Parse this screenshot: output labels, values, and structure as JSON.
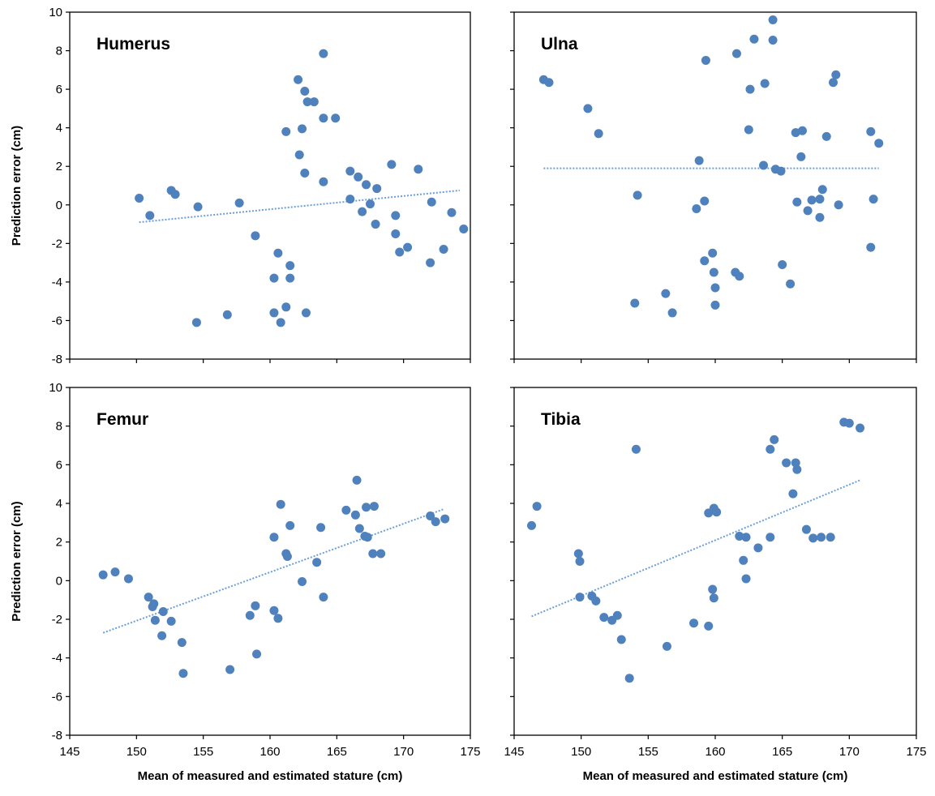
{
  "chart_data": [
    {
      "type": "scatter",
      "title": "Humerus",
      "xlabel": "",
      "ylabel": "Prediction error (cm)",
      "xlim": [
        145,
        175
      ],
      "ylim": [
        -8,
        10
      ],
      "x_ticks": [
        "145",
        "150",
        "155",
        "160",
        "165",
        "170",
        "175"
      ],
      "y_ticks": [
        "-8",
        "-6",
        "-4",
        "-2",
        "0",
        "2",
        "4",
        "6",
        "8",
        "10"
      ],
      "show_x_tick_labels": false,
      "show_y_tick_labels": true,
      "marker_color": "#4f81bd",
      "trendline_color": "#6a9fd8",
      "trendline": {
        "x": [
          150.2,
          174.2
        ],
        "y": [
          -0.9,
          0.75
        ]
      },
      "points": [
        [
          150.2,
          0.35
        ],
        [
          151.0,
          -0.55
        ],
        [
          152.6,
          0.75
        ],
        [
          152.9,
          0.55
        ],
        [
          154.6,
          -0.1
        ],
        [
          154.5,
          -6.1
        ],
        [
          156.8,
          -5.7
        ],
        [
          157.7,
          0.1
        ],
        [
          158.9,
          -1.6
        ],
        [
          160.3,
          -3.8
        ],
        [
          160.6,
          -2.5
        ],
        [
          160.3,
          -5.6
        ],
        [
          160.8,
          -6.1
        ],
        [
          161.2,
          -5.3
        ],
        [
          161.5,
          -3.15
        ],
        [
          161.5,
          -3.8
        ],
        [
          161.2,
          3.8
        ],
        [
          162.1,
          6.5
        ],
        [
          162.6,
          5.9
        ],
        [
          162.8,
          5.35
        ],
        [
          163.3,
          5.35
        ],
        [
          162.4,
          3.95
        ],
        [
          162.2,
          2.6
        ],
        [
          162.6,
          1.65
        ],
        [
          162.7,
          -5.6
        ],
        [
          164.0,
          7.85
        ],
        [
          164.0,
          4.5
        ],
        [
          164.9,
          4.5
        ],
        [
          164.0,
          1.2
        ],
        [
          166.0,
          1.75
        ],
        [
          166.0,
          0.3
        ],
        [
          166.6,
          1.45
        ],
        [
          167.2,
          1.05
        ],
        [
          166.9,
          -0.35
        ],
        [
          167.5,
          0.05
        ],
        [
          168.0,
          0.85
        ],
        [
          167.9,
          -1.0
        ],
        [
          169.1,
          2.1
        ],
        [
          171.1,
          1.85
        ],
        [
          169.4,
          -0.55
        ],
        [
          169.4,
          -1.5
        ],
        [
          169.7,
          -2.45
        ],
        [
          170.3,
          -2.2
        ],
        [
          172.1,
          0.15
        ],
        [
          172.0,
          -3.0
        ],
        [
          173.0,
          -2.3
        ],
        [
          173.6,
          -0.4
        ],
        [
          174.5,
          -1.25
        ]
      ]
    },
    {
      "type": "scatter",
      "title": "Ulna",
      "xlabel": "",
      "ylabel": "",
      "xlim": [
        145,
        175
      ],
      "ylim": [
        -8,
        10
      ],
      "x_ticks": [
        "145",
        "150",
        "155",
        "160",
        "165",
        "170",
        "175"
      ],
      "y_ticks": [
        "-8",
        "-6",
        "-4",
        "-2",
        "0",
        "2",
        "4",
        "6",
        "8",
        "10"
      ],
      "show_x_tick_labels": false,
      "show_y_tick_labels": false,
      "marker_color": "#4f81bd",
      "trendline_color": "#6a9fd8",
      "trendline": {
        "x": [
          147.2,
          172.2
        ],
        "y": [
          1.9,
          1.9
        ]
      },
      "points": [
        [
          147.2,
          6.5
        ],
        [
          147.6,
          6.35
        ],
        [
          150.5,
          5.0
        ],
        [
          151.3,
          3.7
        ],
        [
          154.2,
          0.5
        ],
        [
          154.0,
          -5.1
        ],
        [
          156.3,
          -4.6
        ],
        [
          156.8,
          -5.6
        ],
        [
          158.8,
          2.3
        ],
        [
          159.3,
          7.5
        ],
        [
          159.2,
          0.2
        ],
        [
          158.6,
          -0.2
        ],
        [
          159.2,
          -2.9
        ],
        [
          159.8,
          -2.5
        ],
        [
          159.9,
          -3.5
        ],
        [
          160.0,
          -4.3
        ],
        [
          160.0,
          -5.2
        ],
        [
          161.5,
          -3.5
        ],
        [
          161.8,
          -3.7
        ],
        [
          161.6,
          7.85
        ],
        [
          162.6,
          6.0
        ],
        [
          162.5,
          3.9
        ],
        [
          162.9,
          8.6
        ],
        [
          163.7,
          6.3
        ],
        [
          163.6,
          2.05
        ],
        [
          164.3,
          9.6
        ],
        [
          164.3,
          8.55
        ],
        [
          164.5,
          1.85
        ],
        [
          164.9,
          1.75
        ],
        [
          165.0,
          -3.1
        ],
        [
          165.6,
          -4.1
        ],
        [
          166.0,
          3.75
        ],
        [
          166.1,
          0.15
        ],
        [
          166.4,
          2.5
        ],
        [
          166.5,
          3.85
        ],
        [
          166.9,
          -0.3
        ],
        [
          167.2,
          0.25
        ],
        [
          167.8,
          0.3
        ],
        [
          167.8,
          -0.65
        ],
        [
          168.0,
          0.8
        ],
        [
          168.3,
          3.55
        ],
        [
          168.8,
          6.35
        ],
        [
          169.0,
          6.75
        ],
        [
          169.2,
          0.0
        ],
        [
          171.6,
          3.8
        ],
        [
          171.8,
          0.3
        ],
        [
          171.6,
          -2.2
        ],
        [
          172.2,
          3.2
        ]
      ]
    },
    {
      "type": "scatter",
      "title": "Femur",
      "xlabel": "Mean of measured and estimated stature (cm)",
      "ylabel": "Prediction error (cm)",
      "xlim": [
        145,
        175
      ],
      "ylim": [
        -8,
        10
      ],
      "x_ticks": [
        "145",
        "150",
        "155",
        "160",
        "165",
        "170",
        "175"
      ],
      "y_ticks": [
        "-8",
        "-6",
        "-4",
        "-2",
        "0",
        "2",
        "4",
        "6",
        "8",
        "10"
      ],
      "show_x_tick_labels": true,
      "show_y_tick_labels": true,
      "marker_color": "#4f81bd",
      "trendline_color": "#6a9fd8",
      "trendline": {
        "x": [
          147.5,
          173.0
        ],
        "y": [
          -2.7,
          3.7
        ]
      },
      "points": [
        [
          147.5,
          0.3
        ],
        [
          148.4,
          0.45
        ],
        [
          149.4,
          0.1
        ],
        [
          150.9,
          -0.85
        ],
        [
          151.3,
          -1.2
        ],
        [
          151.2,
          -1.35
        ],
        [
          151.4,
          -2.05
        ],
        [
          152.0,
          -1.6
        ],
        [
          151.9,
          -2.85
        ],
        [
          152.6,
          -2.1
        ],
        [
          153.4,
          -3.2
        ],
        [
          153.5,
          -4.8
        ],
        [
          157.0,
          -4.6
        ],
        [
          158.5,
          -1.8
        ],
        [
          158.9,
          -1.3
        ],
        [
          159.0,
          -3.8
        ],
        [
          160.3,
          2.25
        ],
        [
          160.3,
          -1.55
        ],
        [
          160.6,
          -1.95
        ],
        [
          160.8,
          3.95
        ],
        [
          161.2,
          1.4
        ],
        [
          161.3,
          1.25
        ],
        [
          161.5,
          2.85
        ],
        [
          162.4,
          -0.05
        ],
        [
          163.5,
          0.95
        ],
        [
          163.8,
          2.75
        ],
        [
          164.0,
          -0.85
        ],
        [
          165.7,
          3.65
        ],
        [
          166.5,
          5.2
        ],
        [
          166.4,
          3.4
        ],
        [
          166.7,
          2.7
        ],
        [
          167.1,
          2.3
        ],
        [
          167.3,
          2.25
        ],
        [
          167.2,
          3.8
        ],
        [
          167.8,
          3.85
        ],
        [
          167.7,
          1.4
        ],
        [
          168.3,
          1.4
        ],
        [
          172.0,
          3.35
        ],
        [
          172.4,
          3.05
        ],
        [
          173.1,
          3.2
        ]
      ]
    },
    {
      "type": "scatter",
      "title": "Tibia",
      "xlabel": "Mean of measured and estimated stature (cm)",
      "ylabel": "",
      "xlim": [
        145,
        175
      ],
      "ylim": [
        -8,
        10
      ],
      "x_ticks": [
        "145",
        "150",
        "155",
        "160",
        "165",
        "170",
        "175"
      ],
      "y_ticks": [
        "-8",
        "-6",
        "-4",
        "-2",
        "0",
        "2",
        "4",
        "6",
        "8",
        "10"
      ],
      "show_x_tick_labels": true,
      "show_y_tick_labels": false,
      "marker_color": "#4f81bd",
      "trendline_color": "#6a9fd8",
      "trendline": {
        "x": [
          146.3,
          170.8
        ],
        "y": [
          -1.85,
          5.2
        ]
      },
      "points": [
        [
          146.3,
          2.85
        ],
        [
          146.7,
          3.85
        ],
        [
          149.8,
          1.4
        ],
        [
          149.9,
          1.0
        ],
        [
          149.9,
          -0.85
        ],
        [
          150.8,
          -0.8
        ],
        [
          151.1,
          -1.05
        ],
        [
          151.7,
          -1.9
        ],
        [
          152.3,
          -2.05
        ],
        [
          152.7,
          -1.8
        ],
        [
          153.0,
          -3.05
        ],
        [
          153.6,
          -5.05
        ],
        [
          154.1,
          6.8
        ],
        [
          156.4,
          -3.4
        ],
        [
          158.4,
          -2.2
        ],
        [
          159.5,
          -2.35
        ],
        [
          159.5,
          3.5
        ],
        [
          159.9,
          3.75
        ],
        [
          160.1,
          3.55
        ],
        [
          159.8,
          -0.45
        ],
        [
          159.9,
          -0.9
        ],
        [
          161.8,
          2.3
        ],
        [
          162.3,
          2.25
        ],
        [
          162.1,
          1.05
        ],
        [
          162.3,
          0.1
        ],
        [
          163.2,
          1.7
        ],
        [
          164.1,
          2.25
        ],
        [
          164.1,
          6.8
        ],
        [
          164.4,
          7.3
        ],
        [
          165.3,
          6.1
        ],
        [
          166.0,
          6.1
        ],
        [
          166.1,
          5.75
        ],
        [
          165.8,
          4.5
        ],
        [
          166.8,
          2.65
        ],
        [
          167.3,
          2.2
        ],
        [
          167.9,
          2.25
        ],
        [
          168.6,
          2.25
        ],
        [
          169.6,
          8.2
        ],
        [
          170.0,
          8.15
        ],
        [
          170.8,
          7.9
        ]
      ]
    }
  ]
}
